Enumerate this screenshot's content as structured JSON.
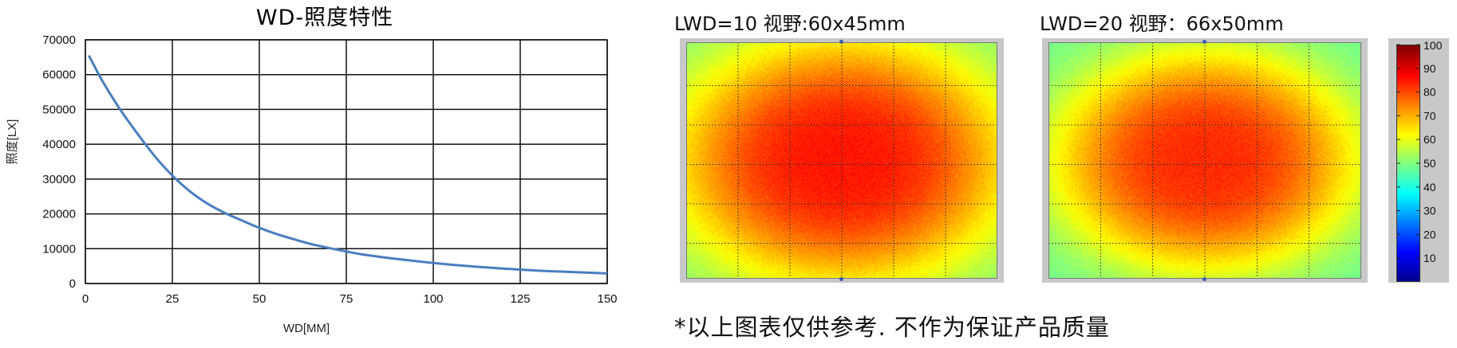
{
  "chart_data": [
    {
      "type": "line",
      "title": "WD-照度特性",
      "xlabel": "WD[MM]",
      "ylabel": "照度[LX]",
      "xlim": [
        0,
        150
      ],
      "ylim": [
        0,
        70000
      ],
      "xticks": [
        0,
        25,
        50,
        75,
        100,
        125,
        150
      ],
      "yticks": [
        0,
        10000,
        20000,
        30000,
        40000,
        50000,
        60000,
        70000
      ],
      "grid": true,
      "series": [
        {
          "color": "#4a7ebf",
          "x": [
            1,
            5,
            10,
            15,
            20,
            25,
            30,
            35,
            40,
            45,
            50,
            55,
            60,
            65,
            70,
            75,
            80,
            90,
            100,
            110,
            120,
            130,
            140,
            150
          ],
          "y": [
            65500,
            58000,
            50000,
            43000,
            36500,
            31000,
            26500,
            23000,
            20300,
            18100,
            16000,
            14200,
            12700,
            11300,
            10200,
            9200,
            8300,
            7000,
            5900,
            5000,
            4300,
            3700,
            3300,
            2900
          ]
        }
      ]
    },
    {
      "type": "heatmap",
      "title": "LWD=10   视野:60x45mm",
      "grid": true,
      "value_range": [
        0,
        100
      ],
      "center_value": 85,
      "edge_value": 50
    },
    {
      "type": "heatmap",
      "title": "LWD=20   视野：66x50mm",
      "grid": true,
      "value_range": [
        0,
        100
      ],
      "center_value": 83,
      "edge_value": 48
    }
  ],
  "colorbar": {
    "ticks": [
      "100",
      "90",
      "80",
      "70",
      "60",
      "50",
      "40",
      "30",
      "20",
      "10"
    ],
    "colors": [
      "#00008f",
      "#0000ff",
      "#0080ff",
      "#00ffff",
      "#80ff80",
      "#ffff00",
      "#ff8000",
      "#ff0000",
      "#800000"
    ]
  },
  "footnote": "*以上图表仅供参考. 不作为保证产品质量"
}
